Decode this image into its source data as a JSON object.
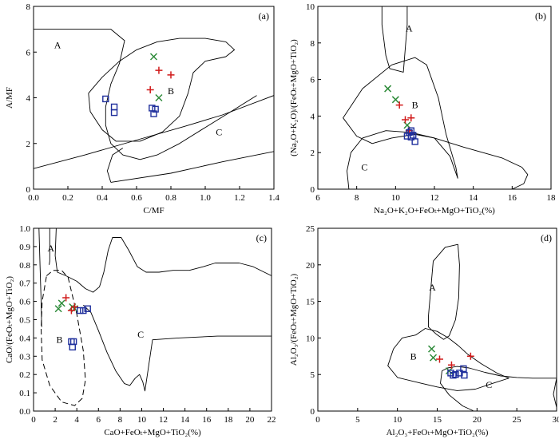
{
  "chart_data": [
    {
      "type": "scatter",
      "panel_label": "(a)",
      "xlabel": "C/MF",
      "ylabel": "A/MF",
      "xlim": [
        0.0,
        1.4
      ],
      "ylim": [
        0,
        8
      ],
      "xticks": [
        "0.0",
        "0.2",
        "0.4",
        "0.6",
        "0.8",
        "1.0",
        "1.2",
        "1.4"
      ],
      "yticks": [
        "0",
        "2",
        "4",
        "6",
        "8"
      ],
      "zones": [
        {
          "label": "A",
          "x": 0.14,
          "y": 6.3
        },
        {
          "label": "B",
          "x": 0.8,
          "y": 4.3
        },
        {
          "label": "C",
          "x": 1.08,
          "y": 2.5
        }
      ],
      "boundaries": [
        [
          [
            0.0,
            7.0
          ],
          [
            0.45,
            7.0
          ],
          [
            0.53,
            6.5
          ],
          [
            0.5,
            5.5
          ],
          [
            0.45,
            4.6
          ],
          [
            0.42,
            3.6
          ],
          [
            0.42,
            2.8
          ],
          [
            0.45,
            2.0
          ],
          [
            0.52,
            1.5
          ],
          [
            0.62,
            1.3
          ],
          [
            0.72,
            1.5
          ],
          [
            0.85,
            2.0
          ],
          [
            1.0,
            2.7
          ],
          [
            1.15,
            3.4
          ],
          [
            1.3,
            4.1
          ]
        ],
        [
          [
            0.32,
            4.2
          ],
          [
            0.4,
            4.9
          ],
          [
            0.5,
            5.6
          ],
          [
            0.6,
            6.1
          ],
          [
            0.72,
            6.45
          ],
          [
            0.85,
            6.6
          ],
          [
            1.0,
            6.6
          ],
          [
            1.12,
            6.45
          ],
          [
            1.17,
            6.1
          ],
          [
            1.12,
            5.8
          ],
          [
            1.0,
            5.6
          ],
          [
            0.93,
            5.1
          ],
          [
            0.9,
            4.2
          ],
          [
            0.85,
            3.2
          ],
          [
            0.75,
            2.5
          ],
          [
            0.62,
            2.1
          ],
          [
            0.48,
            2.1
          ],
          [
            0.4,
            2.6
          ],
          [
            0.33,
            3.4
          ],
          [
            0.32,
            4.2
          ]
        ],
        [
          [
            0.0,
            0.9
          ],
          [
            0.3,
            1.5
          ],
          [
            0.6,
            2.15
          ],
          [
            0.88,
            2.75
          ],
          [
            1.1,
            3.25
          ],
          [
            1.4,
            4.1
          ]
        ],
        [
          [
            0.45,
            0.3
          ],
          [
            0.8,
            0.7
          ],
          [
            1.1,
            1.2
          ],
          [
            1.4,
            1.65
          ]
        ],
        [
          [
            0.45,
            0.3
          ],
          [
            0.43,
            0.8
          ],
          [
            0.46,
            1.5
          ],
          [
            0.52,
            1.8
          ]
        ]
      ],
      "series": [
        {
          "marker": "x",
          "color": "#2e8b3a",
          "points": [
            [
              0.7,
              5.8
            ],
            [
              0.73,
              4.0
            ]
          ]
        },
        {
          "marker": "+",
          "color": "#d11a1a",
          "points": [
            [
              0.73,
              5.2
            ],
            [
              0.8,
              5.0
            ],
            [
              0.68,
              4.35
            ]
          ]
        },
        {
          "marker": "square",
          "color": "#1f2f9c",
          "points": [
            [
              0.42,
              3.95
            ],
            [
              0.47,
              3.6
            ],
            [
              0.47,
              3.35
            ],
            [
              0.69,
              3.55
            ],
            [
              0.71,
              3.5
            ],
            [
              0.7,
              3.3
            ]
          ]
        }
      ]
    },
    {
      "type": "scatter",
      "panel_label": "(b)",
      "xlabel": "Na₂O+K₂O+FeOₜ+MgO+TiO₂(%)",
      "ylabel": "(Na₂O+K₂O)/(FeOₜ+MgO+TiO₂)",
      "xlim": [
        6,
        18
      ],
      "ylim": [
        0,
        10
      ],
      "xticks": [
        "6",
        "8",
        "10",
        "12",
        "14",
        "16",
        "18"
      ],
      "yticks": [
        "0",
        "2",
        "4",
        "6",
        "8",
        "10"
      ],
      "zones": [
        {
          "label": "A",
          "x": 10.7,
          "y": 8.8
        },
        {
          "label": "B",
          "x": 11.0,
          "y": 4.6
        },
        {
          "label": "C",
          "x": 8.4,
          "y": 1.2
        }
      ],
      "boundaries": [
        [
          [
            9.3,
            10
          ],
          [
            9.3,
            9.0
          ],
          [
            9.5,
            7.3
          ],
          [
            9.7,
            6.6
          ],
          [
            10.4,
            6.4
          ],
          [
            10.6,
            9.0
          ],
          [
            10.6,
            10
          ]
        ],
        [
          [
            9.8,
            6.8
          ],
          [
            11.0,
            7.2
          ],
          [
            11.6,
            6.8
          ],
          [
            12.2,
            5.0
          ],
          [
            12.6,
            3.0
          ],
          [
            13.1,
            1.2
          ],
          [
            13.2,
            0.6
          ],
          [
            12.8,
            1.8
          ],
          [
            12.0,
            2.8
          ],
          [
            11.0,
            3.0
          ],
          [
            9.8,
            2.8
          ],
          [
            8.8,
            2.5
          ],
          [
            8.0,
            2.9
          ],
          [
            7.3,
            3.9
          ],
          [
            8.3,
            5.5
          ],
          [
            9.8,
            6.8
          ]
        ],
        [
          [
            7.6,
            0.0
          ],
          [
            7.5,
            1.0
          ],
          [
            7.7,
            2.0
          ],
          [
            8.3,
            2.8
          ],
          [
            9.5,
            3.2
          ],
          [
            10.8,
            3.1
          ],
          [
            12.0,
            2.8
          ],
          [
            13.5,
            2.3
          ],
          [
            15.5,
            1.7
          ],
          [
            16.5,
            1.2
          ],
          [
            16.8,
            0.8
          ],
          [
            16.6,
            0.3
          ],
          [
            16.0,
            0.0
          ]
        ]
      ],
      "series": [
        {
          "marker": "x",
          "color": "#2e8b3a",
          "points": [
            [
              9.6,
              5.5
            ],
            [
              10.0,
              4.9
            ],
            [
              10.6,
              3.5
            ]
          ]
        },
        {
          "marker": "+",
          "color": "#d11a1a",
          "points": [
            [
              10.2,
              4.6
            ],
            [
              10.5,
              3.8
            ],
            [
              10.8,
              3.9
            ],
            [
              10.7,
              3.2
            ]
          ]
        },
        {
          "marker": "square",
          "color": "#1f2f9c",
          "points": [
            [
              10.7,
              3.1
            ],
            [
              10.6,
              2.9
            ],
            [
              10.8,
              2.85
            ],
            [
              10.9,
              2.95
            ],
            [
              11.0,
              2.6
            ],
            [
              10.8,
              3.2
            ]
          ]
        }
      ]
    },
    {
      "type": "scatter",
      "panel_label": "(c)",
      "xlabel": "CaO+FeOₜ+MgO+TiO₂(%)",
      "ylabel": "CaO/(FeOₜ+MgO+TiO₂)",
      "xlim": [
        0,
        22
      ],
      "ylim": [
        0.0,
        1.0
      ],
      "xticks": [
        "0",
        "2",
        "4",
        "6",
        "8",
        "10",
        "12",
        "14",
        "16",
        "18",
        "20",
        "22"
      ],
      "yticks": [
        "0.0",
        "0.1",
        "0.2",
        "0.3",
        "0.4",
        "0.5",
        "0.6",
        "0.7",
        "0.8",
        "0.9",
        "1.0"
      ],
      "zones": [
        {
          "label": "A",
          "x": 1.6,
          "y": 0.89
        },
        {
          "label": "B",
          "x": 2.4,
          "y": 0.39
        },
        {
          "label": "C",
          "x": 9.9,
          "y": 0.42
        }
      ],
      "boundaries": [
        [
          [
            0.5,
            1.0
          ],
          [
            0.6,
            0.8
          ],
          [
            0.7,
            0.6
          ],
          [
            0.75,
            0.46
          ]
        ],
        [
          [
            1.5,
            1.0
          ],
          [
            1.5,
            0.82
          ],
          [
            1.45,
            0.8
          ]
        ],
        [
          [
            2.1,
            1.0
          ],
          [
            2.0,
            0.85
          ],
          [
            2.2,
            0.76
          ],
          [
            3.0,
            0.74
          ],
          [
            4.0,
            0.71
          ],
          [
            4.8,
            0.67
          ],
          [
            5.5,
            0.65
          ],
          [
            6.1,
            0.68
          ],
          [
            6.5,
            0.76
          ],
          [
            6.9,
            0.88
          ],
          [
            7.3,
            0.95
          ],
          [
            8.1,
            0.95
          ],
          [
            8.8,
            0.88
          ],
          [
            9.6,
            0.79
          ],
          [
            10.4,
            0.76
          ],
          [
            11.6,
            0.76
          ],
          [
            12.9,
            0.77
          ],
          [
            14.4,
            0.77
          ],
          [
            15.7,
            0.79
          ],
          [
            16.8,
            0.81
          ],
          [
            19.0,
            0.81
          ],
          [
            20.3,
            0.79
          ],
          [
            22.0,
            0.74
          ]
        ],
        [
          [
            4.6,
            0.58
          ],
          [
            5.3,
            0.54
          ],
          [
            6.0,
            0.44
          ],
          [
            6.8,
            0.32
          ],
          [
            7.6,
            0.22
          ],
          [
            8.4,
            0.15
          ],
          [
            8.9,
            0.14
          ],
          [
            9.4,
            0.18
          ],
          [
            9.8,
            0.2
          ],
          [
            10.1,
            0.16
          ],
          [
            10.3,
            0.11
          ],
          [
            11.0,
            0.39
          ],
          [
            13.4,
            0.4
          ],
          [
            17.0,
            0.41
          ],
          [
            22.0,
            0.41
          ]
        ]
      ],
      "dashed_field": [
        [
          1.2,
          0.74
        ],
        [
          1.8,
          0.77
        ],
        [
          2.6,
          0.77
        ],
        [
          3.2,
          0.73
        ],
        [
          3.6,
          0.63
        ],
        [
          4.0,
          0.53
        ],
        [
          4.6,
          0.33
        ],
        [
          4.8,
          0.17
        ],
        [
          4.5,
          0.07
        ],
        [
          3.8,
          0.03
        ],
        [
          2.6,
          0.05
        ],
        [
          1.5,
          0.14
        ],
        [
          0.8,
          0.28
        ],
        [
          0.7,
          0.45
        ],
        [
          0.8,
          0.6
        ],
        [
          1.2,
          0.74
        ]
      ],
      "series": [
        {
          "marker": "x",
          "color": "#2e8b3a",
          "points": [
            [
              2.3,
              0.56
            ],
            [
              2.6,
              0.59
            ],
            [
              3.6,
              0.57
            ],
            [
              3.8,
              0.56
            ]
          ]
        },
        {
          "marker": "+",
          "color": "#d11a1a",
          "points": [
            [
              3.0,
              0.62
            ],
            [
              3.5,
              0.55
            ],
            [
              3.8,
              0.57
            ]
          ]
        },
        {
          "marker": "square",
          "color": "#1f2f9c",
          "points": [
            [
              4.3,
              0.55
            ],
            [
              4.6,
              0.55
            ],
            [
              5.0,
              0.56
            ],
            [
              3.5,
              0.38
            ],
            [
              3.7,
              0.38
            ],
            [
              3.6,
              0.35
            ]
          ]
        }
      ]
    },
    {
      "type": "scatter",
      "panel_label": "(d)",
      "xlabel": "Al₂O₃+FeOₜ+MgO+TiO₂(%)",
      "ylabel": "Al₂O₃/(FeOₜ+MgO+TiO₂)",
      "xlim": [
        0,
        30
      ],
      "ylim": [
        0,
        25
      ],
      "xticks": [
        "0",
        "5",
        "10",
        "15",
        "20",
        "25",
        "30"
      ],
      "yticks": [
        "0",
        "5",
        "10",
        "15",
        "20",
        "25"
      ],
      "zones": [
        {
          "label": "A",
          "x": 14.4,
          "y": 16.9
        },
        {
          "label": "B",
          "x": 12.0,
          "y": 7.5
        },
        {
          "label": "C",
          "x": 21.5,
          "y": 3.6
        }
      ],
      "boundaries": [
        [
          [
            13.9,
            13.0
          ],
          [
            14.5,
            20.5
          ],
          [
            16.0,
            22.4
          ],
          [
            17.6,
            22.8
          ],
          [
            17.8,
            20.0
          ],
          [
            17.7,
            15.5
          ],
          [
            17.3,
            12.5
          ],
          [
            16.5,
            10.3
          ],
          [
            15.8,
            9.8
          ],
          [
            14.9,
            10.5
          ],
          [
            13.9,
            11.5
          ],
          [
            13.9,
            13.0
          ]
        ],
        [
          [
            12.3,
            10.4
          ],
          [
            13.5,
            11.3
          ],
          [
            15.0,
            10.9
          ],
          [
            16.4,
            10.0
          ],
          [
            17.6,
            9.0
          ],
          [
            18.8,
            7.8
          ],
          [
            20.5,
            6.5
          ],
          [
            22.5,
            5.2
          ],
          [
            24.0,
            4.5
          ],
          [
            22.0,
            3.8
          ],
          [
            19.8,
            3.0
          ],
          [
            17.5,
            2.8
          ],
          [
            15.0,
            3.3
          ],
          [
            13.0,
            3.8
          ],
          [
            10.0,
            4.6
          ],
          [
            8.8,
            6.2
          ],
          [
            9.5,
            8.5
          ],
          [
            10.6,
            10.0
          ],
          [
            12.3,
            10.4
          ]
        ],
        [
          [
            15.6,
            5.5
          ],
          [
            16.3,
            5.9
          ],
          [
            17.5,
            6.1
          ],
          [
            19.0,
            5.9
          ],
          [
            21.0,
            5.3
          ],
          [
            23.0,
            4.8
          ],
          [
            25.0,
            4.6
          ],
          [
            27.0,
            4.5
          ],
          [
            30.0,
            4.5
          ]
        ],
        [
          [
            15.6,
            5.5
          ],
          [
            15.4,
            3.8
          ],
          [
            16.5,
            2.2
          ],
          [
            18.2,
            0.7
          ],
          [
            19.5,
            0.05
          ]
        ],
        [
          [
            30.0,
            4.5
          ],
          [
            29.6,
            2.3
          ],
          [
            30.0,
            0.5
          ]
        ]
      ],
      "series": [
        {
          "marker": "x",
          "color": "#2e8b3a",
          "points": [
            [
              14.3,
              8.5
            ],
            [
              14.5,
              7.3
            ],
            [
              16.5,
              5.5
            ]
          ]
        },
        {
          "marker": "+",
          "color": "#d11a1a",
          "points": [
            [
              15.3,
              7.1
            ],
            [
              16.8,
              6.3
            ],
            [
              19.2,
              7.5
            ]
          ]
        },
        {
          "marker": "square",
          "color": "#1f2f9c",
          "points": [
            [
              16.7,
              5.2
            ],
            [
              17.0,
              4.9
            ],
            [
              17.3,
              5.0
            ],
            [
              17.8,
              5.2
            ],
            [
              18.3,
              5.8
            ],
            [
              18.4,
              4.9
            ]
          ]
        }
      ]
    }
  ]
}
